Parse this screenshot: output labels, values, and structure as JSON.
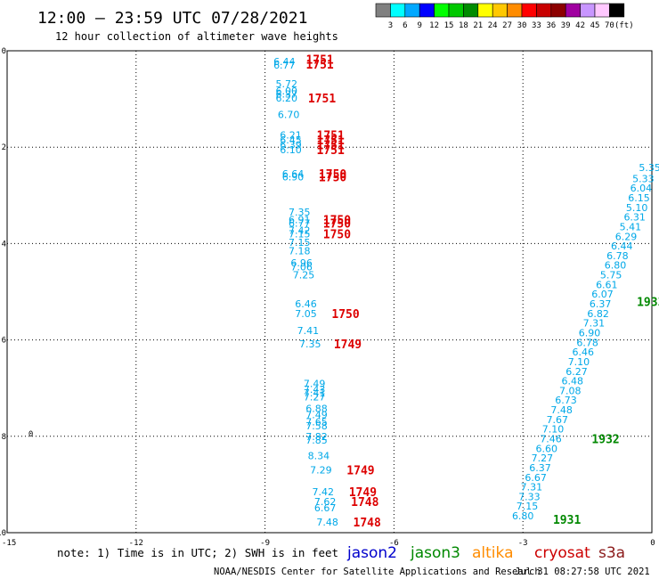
{
  "header": {
    "title": "12:00 – 23:59 UTC 07/28/2021",
    "subtitle": "12 hour collection of altimeter wave heights"
  },
  "legend": {
    "colors": [
      "#808080",
      "#00ffff",
      "#00a8ff",
      "#0000ff",
      "#00ff00",
      "#00c800",
      "#008c00",
      "#ffff00",
      "#ffc800",
      "#ff8c00",
      "#ff0000",
      "#c80000",
      "#8c0000",
      "#a000a0",
      "#c896ff",
      "#ffc8ff",
      "#000000"
    ],
    "ticks": [
      "3",
      "6",
      "9",
      "12",
      "15",
      "18",
      "21",
      "24",
      "27",
      "30",
      "33",
      "36",
      "39",
      "42",
      "45",
      "70",
      "(ft)"
    ]
  },
  "axis": {
    "x_ticks": [
      "-15",
      "-12",
      "-9",
      "-6",
      "-3",
      "0"
    ],
    "y_ticks": [
      "0",
      "-2",
      "-4",
      "-6",
      "-8",
      "-10"
    ]
  },
  "footer": {
    "note": "note: 1) Time is in UTC; 2) SWH is in feet",
    "credit": "NOAA/NESDIS Center for Satellite Applications and Research",
    "timestamp": "Jul 31 08:27:58 UTC 2021"
  },
  "satellites": [
    {
      "label": "jason2",
      "color": "#0000cc"
    },
    {
      "label": "jason3",
      "color": "#008800"
    },
    {
      "label": "altika",
      "color": "#ff8c00"
    },
    {
      "label": "cryosat",
      "color": "#cc0000"
    },
    {
      "label": "s3a",
      "color": "#8b1a1a"
    }
  ],
  "chart_data": {
    "type": "scatter",
    "xlim": [
      -15,
      0
    ],
    "ylim": [
      -10,
      0
    ],
    "grid": true,
    "colors": {
      "swh": "#00a8e8",
      "time_cryosat": "#dd0000",
      "time_jason3": "#008800"
    },
    "swh_points": [
      {
        "x": -8.55,
        "y": -0.22,
        "v": "6.44"
      },
      {
        "x": -8.55,
        "y": -0.3,
        "v": "6.77"
      },
      {
        "x": -8.5,
        "y": -0.68,
        "v": "5.72"
      },
      {
        "x": -8.5,
        "y": -0.83,
        "v": "6.00"
      },
      {
        "x": -8.5,
        "y": -0.9,
        "v": "6.37"
      },
      {
        "x": -8.5,
        "y": -0.98,
        "v": "6.20"
      },
      {
        "x": -8.45,
        "y": -1.32,
        "v": "6.70"
      },
      {
        "x": -8.4,
        "y": -1.75,
        "v": "6.21"
      },
      {
        "x": -8.4,
        "y": -1.85,
        "v": "6.45"
      },
      {
        "x": -8.4,
        "y": -1.95,
        "v": "6.39"
      },
      {
        "x": -8.4,
        "y": -2.05,
        "v": "6.10"
      },
      {
        "x": -8.35,
        "y": -2.55,
        "v": "6.64"
      },
      {
        "x": -8.35,
        "y": -2.62,
        "v": "6.90"
      },
      {
        "x": -8.2,
        "y": -3.35,
        "v": "7.35"
      },
      {
        "x": -8.2,
        "y": -3.5,
        "v": "6.91"
      },
      {
        "x": -8.2,
        "y": -3.58,
        "v": "6.77"
      },
      {
        "x": -8.2,
        "y": -3.72,
        "v": "7.42"
      },
      {
        "x": -8.2,
        "y": -3.8,
        "v": "7.15"
      },
      {
        "x": -8.2,
        "y": -3.97,
        "v": "7.15"
      },
      {
        "x": -8.2,
        "y": -4.15,
        "v": "7.18"
      },
      {
        "x": -8.15,
        "y": -4.4,
        "v": "6.96"
      },
      {
        "x": -8.15,
        "y": -4.48,
        "v": "7.06"
      },
      {
        "x": -8.1,
        "y": -4.65,
        "v": "7.25"
      },
      {
        "x": -8.05,
        "y": -5.25,
        "v": "6.46"
      },
      {
        "x": -8.05,
        "y": -5.45,
        "v": "7.05"
      },
      {
        "x": -8.0,
        "y": -5.8,
        "v": "7.41"
      },
      {
        "x": -7.95,
        "y": -6.08,
        "v": "7.35"
      },
      {
        "x": -7.85,
        "y": -6.9,
        "v": "7.49"
      },
      {
        "x": -7.85,
        "y": -7.02,
        "v": "7.43"
      },
      {
        "x": -7.85,
        "y": -7.1,
        "v": "7.41"
      },
      {
        "x": -7.85,
        "y": -7.18,
        "v": "7.27"
      },
      {
        "x": -7.8,
        "y": -7.42,
        "v": "6.88"
      },
      {
        "x": -7.8,
        "y": -7.55,
        "v": "7.49"
      },
      {
        "x": -7.8,
        "y": -7.7,
        "v": "7.65"
      },
      {
        "x": -7.8,
        "y": -7.78,
        "v": "7.58"
      },
      {
        "x": -7.8,
        "y": -8.0,
        "v": "7.82"
      },
      {
        "x": -7.8,
        "y": -8.08,
        "v": "7.85"
      },
      {
        "x": -7.75,
        "y": -8.4,
        "v": "8.34"
      },
      {
        "x": -7.7,
        "y": -8.7,
        "v": "7.29"
      },
      {
        "x": -7.65,
        "y": -9.15,
        "v": "7.42"
      },
      {
        "x": -7.6,
        "y": -9.35,
        "v": "7.62"
      },
      {
        "x": -7.6,
        "y": -9.48,
        "v": "6.67"
      },
      {
        "x": -7.55,
        "y": -9.78,
        "v": "7.48"
      },
      {
        "x": -0.05,
        "y": -2.42,
        "v": "5.35"
      },
      {
        "x": -0.2,
        "y": -2.65,
        "v": "5.33"
      },
      {
        "x": -0.25,
        "y": -2.85,
        "v": "6.04"
      },
      {
        "x": -0.3,
        "y": -3.05,
        "v": "6.15"
      },
      {
        "x": -0.35,
        "y": -3.25,
        "v": "5.10"
      },
      {
        "x": -0.4,
        "y": -3.45,
        "v": "6.31"
      },
      {
        "x": -0.5,
        "y": -3.65,
        "v": "5.41"
      },
      {
        "x": -0.6,
        "y": -3.85,
        "v": "6.29"
      },
      {
        "x": -0.7,
        "y": -4.05,
        "v": "6.44"
      },
      {
        "x": -0.8,
        "y": -4.25,
        "v": "6.78"
      },
      {
        "x": -0.85,
        "y": -4.45,
        "v": "6.80"
      },
      {
        "x": -0.95,
        "y": -4.65,
        "v": "5.75"
      },
      {
        "x": -1.05,
        "y": -4.85,
        "v": "6.61"
      },
      {
        "x": -1.15,
        "y": -5.05,
        "v": "6.07"
      },
      {
        "x": -1.2,
        "y": -5.25,
        "v": "6.37"
      },
      {
        "x": -1.25,
        "y": -5.45,
        "v": "6.82"
      },
      {
        "x": -1.35,
        "y": -5.65,
        "v": "7.31"
      },
      {
        "x": -1.45,
        "y": -5.85,
        "v": "6.90"
      },
      {
        "x": -1.5,
        "y": -6.05,
        "v": "6.78"
      },
      {
        "x": -1.6,
        "y": -6.25,
        "v": "6.46"
      },
      {
        "x": -1.7,
        "y": -6.45,
        "v": "7.10"
      },
      {
        "x": -1.75,
        "y": -6.65,
        "v": "6.27"
      },
      {
        "x": -1.85,
        "y": -6.85,
        "v": "6.48"
      },
      {
        "x": -1.9,
        "y": -7.05,
        "v": "7.08"
      },
      {
        "x": -2.0,
        "y": -7.25,
        "v": "6.73"
      },
      {
        "x": -2.1,
        "y": -7.45,
        "v": "7.48"
      },
      {
        "x": -2.2,
        "y": -7.65,
        "v": "7.67"
      },
      {
        "x": -2.3,
        "y": -7.85,
        "v": "7.10"
      },
      {
        "x": -2.35,
        "y": -8.05,
        "v": "7.46"
      },
      {
        "x": -2.45,
        "y": -8.25,
        "v": "6.60"
      },
      {
        "x": -2.55,
        "y": -8.45,
        "v": "7.27"
      },
      {
        "x": -2.6,
        "y": -8.65,
        "v": "6.37"
      },
      {
        "x": -2.7,
        "y": -8.85,
        "v": "6.67"
      },
      {
        "x": -2.8,
        "y": -9.05,
        "v": "7.31"
      },
      {
        "x": -2.85,
        "y": -9.25,
        "v": "7.33"
      },
      {
        "x": -2.9,
        "y": -9.45,
        "v": "7.15"
      },
      {
        "x": -3.0,
        "y": -9.65,
        "v": "6.80"
      }
    ],
    "time_labels": [
      {
        "x": -8.05,
        "y": -0.18,
        "v": "1751",
        "sat": "cryosat"
      },
      {
        "x": -8.05,
        "y": -0.28,
        "v": "1751",
        "sat": "cryosat"
      },
      {
        "x": -8.0,
        "y": -0.98,
        "v": "1751",
        "sat": "cryosat"
      },
      {
        "x": -7.8,
        "y": -1.75,
        "v": "1751",
        "sat": "cryosat"
      },
      {
        "x": -7.8,
        "y": -1.85,
        "v": "1751",
        "sat": "cryosat"
      },
      {
        "x": -7.8,
        "y": -1.95,
        "v": "1751",
        "sat": "cryosat"
      },
      {
        "x": -7.8,
        "y": -2.05,
        "v": "1751",
        "sat": "cryosat"
      },
      {
        "x": -7.75,
        "y": -2.55,
        "v": "1750",
        "sat": "cryosat"
      },
      {
        "x": -7.75,
        "y": -2.62,
        "v": "1750",
        "sat": "cryosat"
      },
      {
        "x": -7.65,
        "y": -3.5,
        "v": "1750",
        "sat": "cryosat"
      },
      {
        "x": -7.65,
        "y": -3.58,
        "v": "1750",
        "sat": "cryosat"
      },
      {
        "x": -7.65,
        "y": -3.8,
        "v": "1750",
        "sat": "cryosat"
      },
      {
        "x": -7.45,
        "y": -5.45,
        "v": "1750",
        "sat": "cryosat"
      },
      {
        "x": -7.4,
        "y": -6.08,
        "v": "1749",
        "sat": "cryosat"
      },
      {
        "x": -7.1,
        "y": -8.7,
        "v": "1749",
        "sat": "cryosat"
      },
      {
        "x": -7.05,
        "y": -9.15,
        "v": "1749",
        "sat": "cryosat"
      },
      {
        "x": -7.0,
        "y": -9.35,
        "v": "1748",
        "sat": "cryosat"
      },
      {
        "x": -6.95,
        "y": -9.78,
        "v": "1748",
        "sat": "cryosat"
      },
      {
        "x": -0.35,
        "y": -5.2,
        "v": "1933",
        "sat": "jason3"
      },
      {
        "x": -1.4,
        "y": -8.05,
        "v": "1932",
        "sat": "jason3"
      },
      {
        "x": -2.3,
        "y": -9.72,
        "v": "1931",
        "sat": "jason3"
      }
    ],
    "markers": [
      {
        "x": -14.45,
        "y": -7.95,
        "v": "0"
      }
    ]
  }
}
